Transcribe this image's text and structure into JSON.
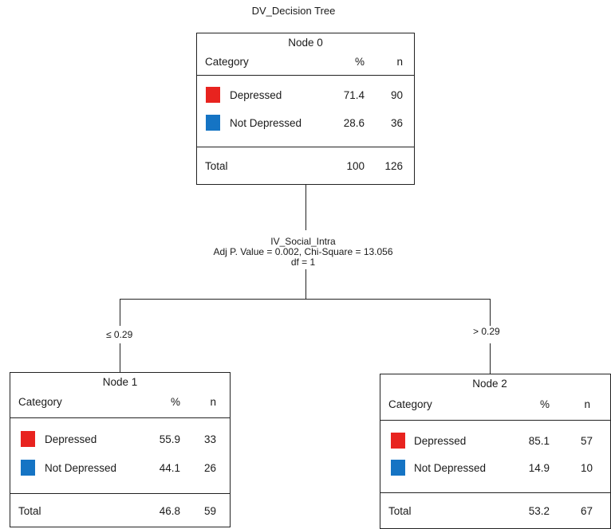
{
  "title": "DV_Decision Tree",
  "colors": {
    "depressed": "#e8231f",
    "not_depressed": "#1574c4"
  },
  "split": {
    "variable": "IV_Social_Intra",
    "stats": "Adj P. Value = 0.002, Chi-Square = 13.056",
    "df": "df = 1",
    "left_condition": "≤ 0.29",
    "right_condition": "> 0.29"
  },
  "nodes": [
    {
      "title": "Node 0",
      "header": {
        "category": "Category",
        "pct": "%",
        "n": "n"
      },
      "rows": [
        {
          "label": "Depressed",
          "pct": "71.4",
          "n": "90"
        },
        {
          "label": "Not Depressed",
          "pct": "28.6",
          "n": "36"
        }
      ],
      "total": {
        "label": "Total",
        "pct": "100",
        "n": "126"
      }
    },
    {
      "title": "Node 1",
      "header": {
        "category": "Category",
        "pct": "%",
        "n": "n"
      },
      "rows": [
        {
          "label": "Depressed",
          "pct": "55.9",
          "n": "33"
        },
        {
          "label": "Not Depressed",
          "pct": "44.1",
          "n": "26"
        }
      ],
      "total": {
        "label": "Total",
        "pct": "46.8",
        "n": "59"
      }
    },
    {
      "title": "Node 2",
      "header": {
        "category": "Category",
        "pct": "%",
        "n": "n"
      },
      "rows": [
        {
          "label": "Depressed",
          "pct": "85.1",
          "n": "57"
        },
        {
          "label": "Not Depressed",
          "pct": "14.9",
          "n": "10"
        }
      ],
      "total": {
        "label": "Total",
        "pct": "53.2",
        "n": "67"
      }
    }
  ]
}
